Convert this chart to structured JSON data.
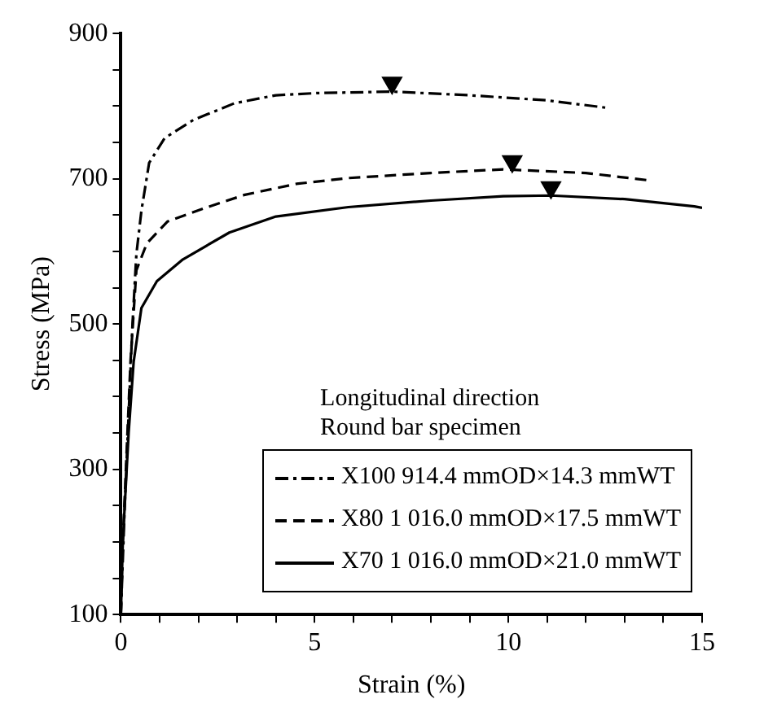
{
  "chart_data": {
    "type": "line",
    "xlabel": "Strain (%)",
    "ylabel": "Stress (MPa)",
    "legend_title": "Longitudinal direction\nRound bar specimen",
    "xlim": [
      0,
      15
    ],
    "xticks": [
      0,
      {
        "value": 1,
        "label": null
      },
      {
        "value": 2,
        "label": null
      },
      {
        "value": 3,
        "label": null
      },
      {
        "value": 4,
        "label": null
      },
      5,
      {
        "value": 6,
        "label": null
      },
      {
        "value": 7,
        "label": null
      },
      {
        "value": 8,
        "label": null
      },
      {
        "value": 9,
        "label": null
      },
      10,
      {
        "value": 11,
        "label": null
      },
      {
        "value": 12,
        "label": null
      },
      {
        "value": 13,
        "label": null
      },
      {
        "value": 14,
        "label": null
      },
      15
    ],
    "ylim": [
      100,
      900
    ],
    "yticks": [
      100,
      {
        "value": 150,
        "label": null
      },
      {
        "value": 200,
        "label": null
      },
      {
        "value": 250,
        "label": null
      },
      300,
      {
        "value": 350,
        "label": null
      },
      {
        "value": 400,
        "label": null
      },
      {
        "value": 450,
        "label": null
      },
      500,
      {
        "value": 550,
        "label": null
      },
      {
        "value": 600,
        "label": null
      },
      {
        "value": 650,
        "label": null
      },
      700,
      {
        "value": 750,
        "label": null
      },
      {
        "value": 800,
        "label": null
      },
      {
        "value": 850,
        "label": null
      },
      900
    ],
    "grid": false,
    "legend": "bottom right",
    "marker": "none",
    "series": [
      {
        "name": "X100 914.4 mmOD×14.3 mmWT",
        "color": "#000000",
        "line_style": "dashdot",
        "x": [
          0,
          0.1,
          0.3,
          0.4,
          0.53,
          0.73,
          1.13,
          1.87,
          2.93,
          4,
          5.07,
          7,
          9,
          11,
          12.5
        ],
        "values": [
          100,
          250,
          500,
          596,
          656,
          722,
          756,
          781,
          804,
          815,
          818,
          820,
          815,
          808,
          798
        ]
      },
      {
        "name": "X80 1 016.0 mmOD×17.5 mmWT",
        "color": "#000000",
        "line_style": "dashed",
        "x": [
          0,
          0.05,
          0.25,
          0.4,
          0.67,
          1.2,
          2.13,
          3.2,
          4.53,
          5.87,
          8,
          9.87,
          12,
          13.6
        ],
        "values": [
          100,
          200,
          450,
          574,
          611,
          641,
          659,
          678,
          693,
          701,
          708,
          713,
          708,
          698
        ]
      },
      {
        "name": "X70 1 016.0 mmOD×21.0 mmWT",
        "color": "#000000",
        "line_style": "solid",
        "x": [
          0,
          0.05,
          0.2,
          0.33,
          0.53,
          0.93,
          1.6,
          2.8,
          4,
          5.87,
          8,
          9.87,
          11.1,
          13,
          14.8,
          15
        ],
        "values": [
          100,
          200,
          350,
          448,
          522,
          559,
          589,
          626,
          648,
          661,
          670,
          676,
          677,
          672,
          662,
          660
        ]
      },
      {
        "type": "scatter",
        "marker": "triangle",
        "color": "#000000",
        "x": [
          7,
          10.1,
          11.1
        ],
        "values": [
          832,
          724,
          688
        ]
      }
    ]
  }
}
